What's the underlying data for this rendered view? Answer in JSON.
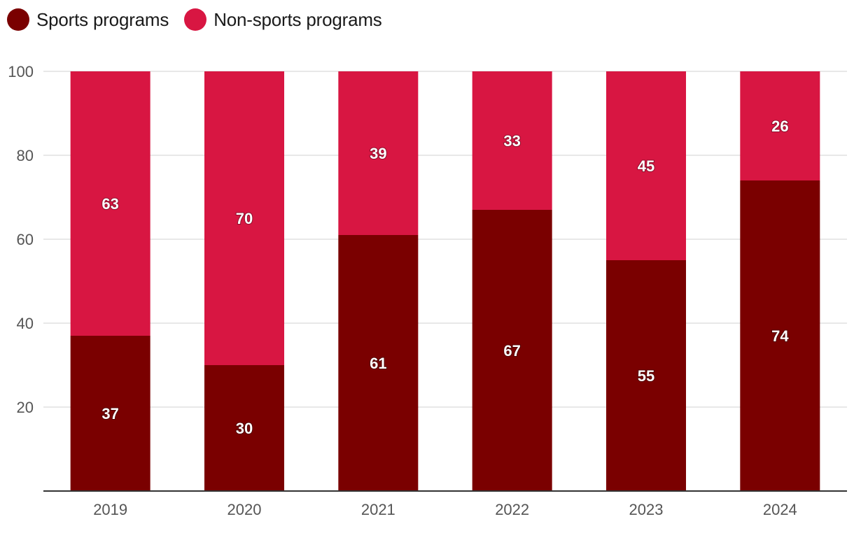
{
  "chart_data": {
    "type": "bar",
    "stacked": true,
    "categories": [
      "2019",
      "2020",
      "2021",
      "2022",
      "2023",
      "2024"
    ],
    "series": [
      {
        "name": "Sports programs",
        "color": "#7a0000",
        "values": [
          37,
          30,
          61,
          67,
          55,
          74
        ]
      },
      {
        "name": "Non-sports programs",
        "color": "#d81642",
        "values": [
          63,
          70,
          39,
          33,
          45,
          26
        ]
      }
    ],
    "y_ticks": [
      20,
      40,
      60,
      80,
      100
    ],
    "ylim": [
      0,
      100
    ],
    "grid": true,
    "legend_position": "top-left",
    "title": "",
    "xlabel": "",
    "ylabel": ""
  }
}
